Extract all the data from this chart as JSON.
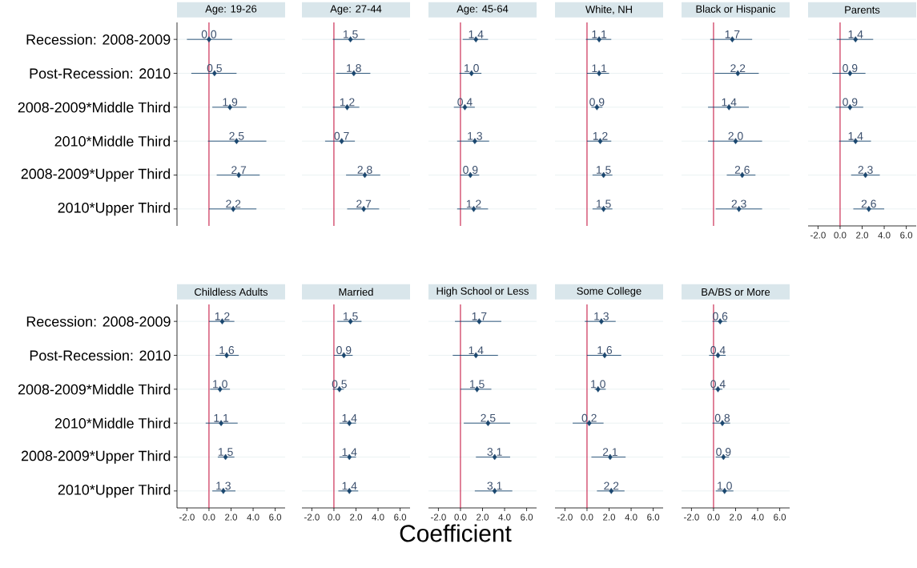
{
  "chart_data": [
    {
      "type": "scatter",
      "orientation": "horizontal",
      "title": "Age: 19-26",
      "categories": [
        "Recession: 2008-2009",
        "Post-Recession: 2010",
        "2008-2009*Middle Third",
        "2010*Middle Third",
        "2008-2009*Upper Third",
        "2010*Upper Third"
      ],
      "values": [
        0.0,
        0.5,
        1.9,
        2.5,
        2.7,
        2.2
      ],
      "value_labels": [
        "0.0",
        "0.5",
        "1.9",
        "2.5",
        "2.7",
        "2.2"
      ],
      "errors": [
        [
          -2.0,
          2.1
        ],
        [
          -1.6,
          2.5
        ],
        [
          0.3,
          3.4
        ],
        [
          -0.1,
          5.2
        ],
        [
          0.7,
          4.6
        ],
        [
          0.0,
          4.3
        ]
      ],
      "color": "#1a476f",
      "marker": "diamond",
      "grid": "y",
      "ref_lines": [
        {
          "axis": "x",
          "value": 0,
          "color": "#c10534"
        }
      ],
      "xlim": [
        -2.9,
        6.9
      ],
      "tick_labels": "y"
    },
    {
      "type": "scatter",
      "orientation": "horizontal",
      "title": "Age: 27-44",
      "categories": [
        null,
        null,
        null,
        null,
        null,
        null
      ],
      "values": [
        1.5,
        1.8,
        1.2,
        0.7,
        2.8,
        2.7
      ],
      "value_labels": [
        "1.5",
        "1.8",
        "1.2",
        "0.7",
        "2.8",
        "2.7"
      ],
      "errors": [
        [
          -0.1,
          2.8
        ],
        [
          0.2,
          3.3
        ],
        [
          -0.1,
          2.3
        ],
        [
          -0.8,
          1.9
        ],
        [
          1.1,
          4.2
        ],
        [
          1.2,
          4.1
        ]
      ],
      "color": "#1a476f",
      "marker": "diamond",
      "grid": "y",
      "ref_lines": [
        {
          "axis": "x",
          "value": 0,
          "color": "#c10534"
        }
      ],
      "xlim": [
        -2.9,
        6.9
      ],
      "tick_labels": false
    },
    {
      "type": "scatter",
      "orientation": "horizontal",
      "title": "Age: 45-64",
      "categories": [
        null,
        null,
        null,
        null,
        null,
        null
      ],
      "values": [
        1.4,
        1.0,
        0.4,
        1.3,
        0.9,
        1.2
      ],
      "value_labels": [
        "1.4",
        "1.0",
        "0.4",
        "1.3",
        "0.9",
        "1.2"
      ],
      "errors": [
        [
          0.2,
          2.5
        ],
        [
          -0.1,
          1.9
        ],
        [
          -0.6,
          1.3
        ],
        [
          -0.3,
          2.6
        ],
        [
          0.0,
          1.7
        ],
        [
          -0.3,
          2.5
        ]
      ],
      "color": "#1a476f",
      "marker": "diamond",
      "grid": "y",
      "ref_lines": [
        {
          "axis": "x",
          "value": 0,
          "color": "#c10534"
        }
      ],
      "xlim": [
        -2.9,
        6.9
      ],
      "tick_labels": false
    },
    {
      "type": "scatter",
      "orientation": "horizontal",
      "title": "White, NH",
      "categories": [
        null,
        null,
        null,
        null,
        null,
        null
      ],
      "values": [
        1.1,
        1.1,
        0.9,
        1.2,
        1.5,
        1.5
      ],
      "value_labels": [
        "1.1",
        "1.1",
        "0.9",
        "1.2",
        "1.5",
        "1.5"
      ],
      "errors": [
        [
          -0.1,
          2.2
        ],
        [
          0.0,
          2.0
        ],
        [
          0.4,
          1.4
        ],
        [
          0.0,
          2.2
        ],
        [
          0.5,
          2.3
        ],
        [
          0.5,
          2.3
        ]
      ],
      "color": "#1a476f",
      "marker": "diamond",
      "grid": "y",
      "ref_lines": [
        {
          "axis": "x",
          "value": 0,
          "color": "#c10534"
        }
      ],
      "xlim": [
        -2.9,
        6.9
      ],
      "tick_labels": false
    },
    {
      "type": "scatter",
      "orientation": "horizontal",
      "title": "Black or Hispanic",
      "categories": [
        null,
        null,
        null,
        null,
        null,
        null
      ],
      "values": [
        1.7,
        2.2,
        1.4,
        2.0,
        2.6,
        2.3
      ],
      "value_labels": [
        "1.7",
        "2.2",
        "1.4",
        "2.0",
        "2.6",
        "2.3"
      ],
      "errors": [
        [
          -0.3,
          3.5
        ],
        [
          0.1,
          4.1
        ],
        [
          -0.5,
          3.2
        ],
        [
          -0.5,
          4.4
        ],
        [
          1.2,
          3.8
        ],
        [
          0.2,
          4.4
        ]
      ],
      "color": "#1a476f",
      "marker": "diamond",
      "grid": "y",
      "ref_lines": [
        {
          "axis": "x",
          "value": 0,
          "color": "#c10534"
        }
      ],
      "xlim": [
        -2.9,
        6.9
      ],
      "tick_labels": false
    },
    {
      "type": "scatter",
      "orientation": "horizontal",
      "title": "Parents",
      "categories": [
        null,
        null,
        null,
        null,
        null,
        null
      ],
      "values": [
        1.4,
        0.9,
        0.9,
        1.4,
        2.3,
        2.6
      ],
      "value_labels": [
        "1.4",
        "0.9",
        "0.9",
        "1.4",
        "2.3",
        "2.6"
      ],
      "errors": [
        [
          -0.3,
          3.0
        ],
        [
          -0.7,
          2.3
        ],
        [
          -0.4,
          2.1
        ],
        [
          -0.1,
          2.8
        ],
        [
          1.0,
          3.6
        ],
        [
          1.2,
          4.0
        ]
      ],
      "color": "#1a476f",
      "marker": "diamond",
      "grid": "y",
      "ref_lines": [
        {
          "axis": "x",
          "value": 0,
          "color": "#c10534"
        }
      ],
      "xlim": [
        -2.9,
        6.9
      ],
      "xticks": [
        {
          "value": -2,
          "label": "-2.0"
        },
        {
          "value": 0,
          "label": "0.0"
        },
        {
          "value": 2,
          "label": "2.0"
        },
        {
          "value": 4,
          "label": "4.0"
        },
        {
          "value": 6,
          "label": "6.0"
        }
      ],
      "tick_labels": "x"
    },
    {
      "type": "scatter",
      "orientation": "horizontal",
      "title": "Childless Adults",
      "categories": [
        "Recession: 2008-2009",
        "Post-Recession: 2010",
        "2008-2009*Middle Third",
        "2010*Middle Third",
        "2008-2009*Upper Third",
        "2010*Upper Third"
      ],
      "values": [
        1.2,
        1.6,
        1.0,
        1.1,
        1.5,
        1.3
      ],
      "value_labels": [
        "1.2",
        "1.6",
        "1.0",
        "1.1",
        "1.5",
        "1.3"
      ],
      "errors": [
        [
          0.0,
          2.3
        ],
        [
          0.6,
          2.7
        ],
        [
          0.1,
          1.9
        ],
        [
          -0.3,
          2.6
        ],
        [
          0.8,
          2.3
        ],
        [
          0.3,
          2.4
        ]
      ],
      "color": "#1a476f",
      "marker": "diamond",
      "grid": "y",
      "ref_lines": [
        {
          "axis": "x",
          "value": 0,
          "color": "#c10534"
        }
      ],
      "xlim": [
        -2.9,
        6.9
      ],
      "xticks": [
        {
          "value": -2,
          "label": "-2.0"
        },
        {
          "value": 0,
          "label": "0.0"
        },
        {
          "value": 2,
          "label": "2.0"
        },
        {
          "value": 4,
          "label": "4.0"
        },
        {
          "value": 6,
          "label": "6.0"
        }
      ]
    },
    {
      "type": "scatter",
      "orientation": "horizontal",
      "title": "Married",
      "categories": [
        null,
        null,
        null,
        null,
        null,
        null
      ],
      "values": [
        1.5,
        0.9,
        0.5,
        1.4,
        1.4,
        1.4
      ],
      "value_labels": [
        "1.5",
        "0.9",
        "0.5",
        "1.4",
        "1.4",
        "1.4"
      ],
      "errors": [
        [
          0.3,
          2.5
        ],
        [
          0.0,
          1.7
        ],
        [
          -0.1,
          0.9
        ],
        [
          0.5,
          2.0
        ],
        [
          0.5,
          2.0
        ],
        [
          0.4,
          2.2
        ]
      ],
      "color": "#1a476f",
      "marker": "diamond",
      "grid": "y",
      "ref_lines": [
        {
          "axis": "x",
          "value": 0,
          "color": "#c10534"
        }
      ],
      "xlim": [
        -2.9,
        6.9
      ],
      "xticks": [
        {
          "value": -2,
          "label": "-2.0"
        },
        {
          "value": 0,
          "label": "0.0"
        },
        {
          "value": 2,
          "label": "2.0"
        },
        {
          "value": 4,
          "label": "4.0"
        },
        {
          "value": 6,
          "label": "6.0"
        }
      ],
      "tick_labels": "x"
    },
    {
      "type": "scatter",
      "orientation": "horizontal",
      "title": "High School or Less",
      "xlabel": "Coefficient",
      "categories": [
        null,
        null,
        null,
        null,
        null,
        null
      ],
      "values": [
        1.7,
        1.4,
        1.5,
        2.5,
        3.1,
        3.1
      ],
      "value_labels": [
        "1.7",
        "1.4",
        "1.5",
        "2.5",
        "3.1",
        "3.1"
      ],
      "errors": [
        [
          -0.5,
          3.7
        ],
        [
          -0.7,
          3.4
        ],
        [
          0.0,
          2.8
        ],
        [
          0.3,
          4.5
        ],
        [
          1.4,
          4.5
        ],
        [
          1.3,
          4.7
        ]
      ],
      "color": "#1a476f",
      "marker": "diamond",
      "grid": "y",
      "ref_lines": [
        {
          "axis": "x",
          "value": 0,
          "color": "#c10534"
        }
      ],
      "xlim": [
        -2.9,
        6.9
      ],
      "xticks": [
        {
          "value": -2,
          "label": "-2.0"
        },
        {
          "value": 0,
          "label": "0.0"
        },
        {
          "value": 2,
          "label": "2.0"
        },
        {
          "value": 4,
          "label": "4.0"
        },
        {
          "value": 6,
          "label": "6.0"
        }
      ],
      "tick_labels": "x"
    },
    {
      "type": "scatter",
      "orientation": "horizontal",
      "title": "Some College",
      "categories": [
        null,
        null,
        null,
        null,
        null,
        null
      ],
      "values": [
        1.3,
        1.6,
        1.0,
        0.2,
        2.1,
        2.2
      ],
      "value_labels": [
        "1.3",
        "1.6",
        "1.0",
        "0.2",
        "2.1",
        "2.2"
      ],
      "errors": [
        [
          -0.2,
          2.6
        ],
        [
          0.0,
          3.1
        ],
        [
          0.7,
          1.7
        ],
        [
          -1.3,
          1.5
        ],
        [
          0.4,
          3.5
        ],
        [
          0.9,
          3.4
        ]
      ],
      "color": "#1a476f",
      "marker": "diamond",
      "grid": "y",
      "ref_lines": [
        {
          "axis": "x",
          "value": 0,
          "color": "#c10534"
        }
      ],
      "xlim": [
        -2.9,
        6.9
      ],
      "xticks": [
        {
          "value": -2,
          "label": "-2.0"
        },
        {
          "value": 0,
          "label": "0.0"
        },
        {
          "value": 2,
          "label": "2.0"
        },
        {
          "value": 4,
          "label": "4.0"
        },
        {
          "value": 6,
          "label": "6.0"
        }
      ],
      "tick_labels": "x"
    },
    {
      "type": "scatter",
      "orientation": "horizontal",
      "title": "BA/BS or More",
      "categories": [
        null,
        null,
        null,
        null,
        null,
        null
      ],
      "values": [
        0.6,
        0.4,
        0.4,
        0.8,
        0.9,
        1.0
      ],
      "value_labels": [
        "0.6",
        "0.4",
        "0.4",
        "0.8",
        "0.9",
        "1.0"
      ],
      "errors": [
        [
          -0.1,
          1.2
        ],
        [
          -0.4,
          1.1
        ],
        [
          -0.1,
          0.8
        ],
        [
          -0.1,
          1.5
        ],
        [
          0.2,
          1.4
        ],
        [
          0.2,
          1.8
        ]
      ],
      "color": "#1a476f",
      "marker": "diamond",
      "grid": "y",
      "ref_lines": [
        {
          "axis": "x",
          "value": 0,
          "color": "#c10534"
        }
      ],
      "xlim": [
        -2.9,
        6.9
      ],
      "xticks": [
        {
          "value": -2,
          "label": "-2.0"
        },
        {
          "value": 0,
          "label": "0.0"
        },
        {
          "value": 2,
          "label": "2.0"
        },
        {
          "value": 4,
          "label": "4.0"
        },
        {
          "value": 6,
          "label": "6.0"
        }
      ],
      "tick_labels": "x"
    }
  ]
}
